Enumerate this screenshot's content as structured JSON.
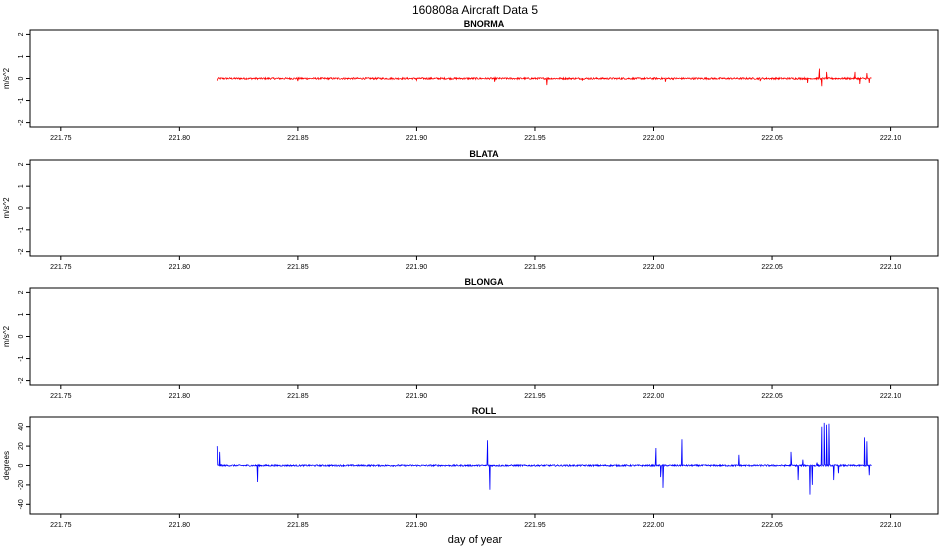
{
  "page": {
    "title": "160808a   Aircraft Data 5",
    "xlabel": "day of year"
  },
  "colors": {
    "bnorma": "#ff0000",
    "roll": "#0000ff",
    "axes": "#000000"
  },
  "chart_data": [
    {
      "type": "line",
      "title": "BNORMA",
      "ylabel": "m/s^2",
      "xlim": [
        221.737,
        222.12
      ],
      "ylim": [
        -2.2,
        2.2
      ],
      "xticks": [
        "221.75",
        "221.80",
        "221.85",
        "221.90",
        "221.95",
        "222.00",
        "222.05",
        "222.10"
      ],
      "yticks": [
        "-2",
        "-1",
        "0",
        "1",
        "2"
      ],
      "series": [
        {
          "color": "#ff0000",
          "x_start": 221.816,
          "x_end": 222.092,
          "baseline": 0,
          "noise": 0.04,
          "spikes": [
            [
              221.816,
              0.12
            ],
            [
              221.816,
              -0.1
            ],
            [
              221.85,
              0.12
            ],
            [
              221.85,
              -0.12
            ],
            [
              221.9,
              0.1
            ],
            [
              221.9,
              -0.08
            ],
            [
              221.933,
              0.2
            ],
            [
              221.933,
              -0.15
            ],
            [
              221.955,
              -0.3
            ],
            [
              221.97,
              0.12
            ],
            [
              221.97,
              -0.1
            ],
            [
              222.005,
              0.18
            ],
            [
              222.005,
              -0.15
            ],
            [
              222.045,
              0.18
            ],
            [
              222.045,
              -0.12
            ],
            [
              222.065,
              0.2
            ],
            [
              222.065,
              -0.2
            ],
            [
              222.07,
              0.45
            ],
            [
              222.071,
              -0.35
            ],
            [
              222.073,
              0.3
            ],
            [
              222.085,
              0.3
            ],
            [
              222.087,
              -0.25
            ],
            [
              222.09,
              0.25
            ],
            [
              222.091,
              -0.2
            ]
          ]
        }
      ]
    },
    {
      "type": "line",
      "title": "BLATA",
      "ylabel": "m/s^2",
      "xlim": [
        221.737,
        222.12
      ],
      "ylim": [
        -2.2,
        2.2
      ],
      "xticks": [
        "221.75",
        "221.80",
        "221.85",
        "221.90",
        "221.95",
        "222.00",
        "222.05",
        "222.10"
      ],
      "yticks": [
        "-2",
        "-1",
        "0",
        "1",
        "2"
      ],
      "series": []
    },
    {
      "type": "line",
      "title": "BLONGA",
      "ylabel": "m/s^2",
      "xlim": [
        221.737,
        222.12
      ],
      "ylim": [
        -2.2,
        2.2
      ],
      "xticks": [
        "221.75",
        "221.80",
        "221.85",
        "221.90",
        "221.95",
        "222.00",
        "222.05",
        "222.10"
      ],
      "yticks": [
        "-2",
        "-1",
        "0",
        "1",
        "2"
      ],
      "series": []
    },
    {
      "type": "line",
      "title": "ROLL",
      "ylabel": "degrees",
      "xlim": [
        221.737,
        222.12
      ],
      "ylim": [
        -50,
        50
      ],
      "xticks": [
        "221.75",
        "221.80",
        "221.85",
        "221.90",
        "221.95",
        "222.00",
        "222.05",
        "222.10"
      ],
      "yticks": [
        "-40",
        "-20",
        "0",
        "20",
        "40"
      ],
      "series": [
        {
          "color": "#0000ff",
          "x_start": 221.816,
          "x_end": 222.092,
          "baseline": 0,
          "noise": 0.8,
          "spikes": [
            [
              221.816,
              20
            ],
            [
              221.817,
              14
            ],
            [
              221.833,
              -17
            ],
            [
              221.93,
              26
            ],
            [
              221.931,
              -25
            ],
            [
              222.001,
              18
            ],
            [
              222.003,
              -12
            ],
            [
              222.004,
              -23
            ],
            [
              222.012,
              27
            ],
            [
              222.036,
              11
            ],
            [
              222.058,
              14
            ],
            [
              222.061,
              -15
            ],
            [
              222.063,
              6
            ],
            [
              222.066,
              -30
            ],
            [
              222.067,
              -20
            ],
            [
              222.069,
              3
            ],
            [
              222.071,
              40
            ],
            [
              222.072,
              44
            ],
            [
              222.073,
              42
            ],
            [
              222.074,
              43
            ],
            [
              222.076,
              -15
            ],
            [
              222.078,
              -8
            ],
            [
              222.089,
              29
            ],
            [
              222.09,
              25
            ],
            [
              222.091,
              -10
            ]
          ]
        }
      ]
    }
  ]
}
